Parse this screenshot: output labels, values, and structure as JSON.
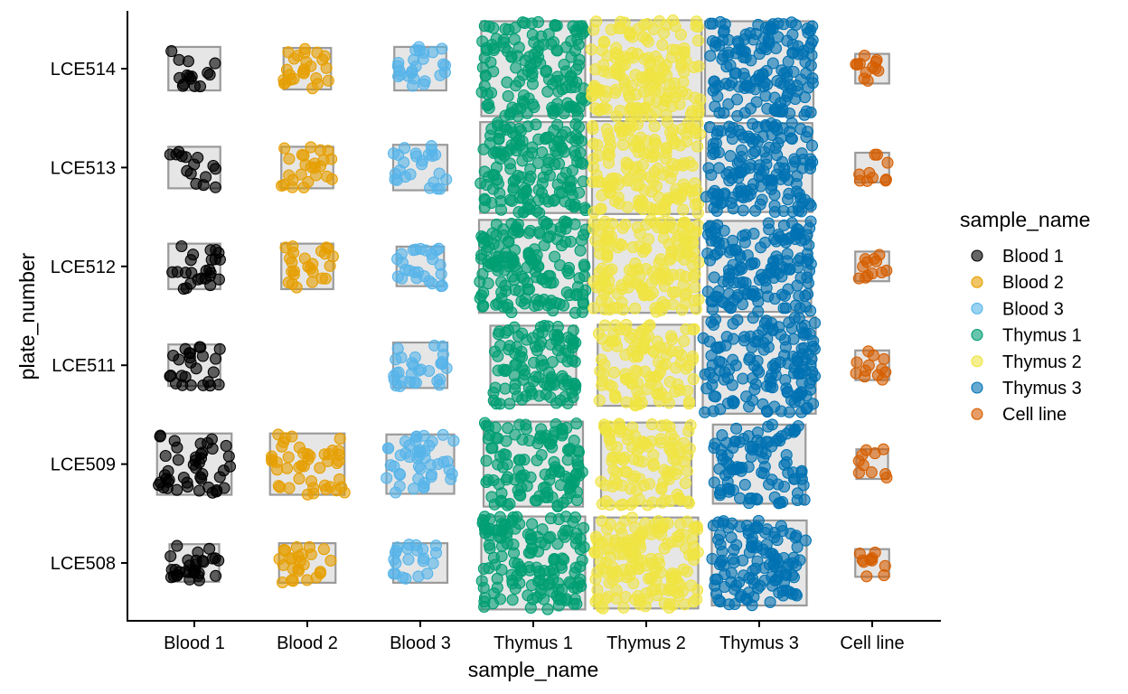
{
  "chart_data": {
    "type": "scatter",
    "xlabel": "sample_name",
    "ylabel": "plate_number",
    "categories_x": [
      "Blood 1",
      "Blood 2",
      "Blood 3",
      "Thymus 1",
      "Thymus 2",
      "Thymus 3",
      "Cell line"
    ],
    "categories_y": [
      "LCE508",
      "LCE509",
      "LCE511",
      "LCE512",
      "LCE513",
      "LCE514"
    ],
    "legend": {
      "title": "sample_name",
      "position": "right",
      "entries": [
        {
          "name": "Blood 1",
          "color": "#000000"
        },
        {
          "name": "Blood 2",
          "color": "#E69F00"
        },
        {
          "name": "Blood 3",
          "color": "#56B4E9"
        },
        {
          "name": "Thymus 1",
          "color": "#009E73"
        },
        {
          "name": "Thymus 2",
          "color": "#F0E442"
        },
        {
          "name": "Thymus 3",
          "color": "#0072B2"
        },
        {
          "name": "Cell line",
          "color": "#D55E00"
        }
      ]
    },
    "grid": false,
    "point_counts": [
      [
        30,
        45,
        25,
        25,
        15,
        15
      ],
      [
        25,
        45,
        0,
        25,
        25,
        25
      ],
      [
        22,
        45,
        30,
        25,
        25,
        25
      ],
      [
        150,
        120,
        110,
        160,
        150,
        140
      ],
      [
        160,
        110,
        110,
        160,
        150,
        160
      ],
      [
        120,
        95,
        150,
        150,
        150,
        150
      ],
      [
        10,
        10,
        12,
        12,
        10,
        12
      ]
    ],
    "box_spread": [
      [
        [
          0.22,
          0.19
        ],
        [
          0.33,
          0.31
        ],
        [
          0.23,
          0.21
        ],
        [
          0.23,
          0.23
        ],
        [
          0.23,
          0.21
        ],
        [
          0.23,
          0.22
        ]
      ],
      [
        [
          0.25,
          0.2
        ],
        [
          0.33,
          0.31
        ],
        [
          0,
          0
        ],
        [
          0.23,
          0.23
        ],
        [
          0.23,
          0.21
        ],
        [
          0.21,
          0.21
        ]
      ],
      [
        [
          0.24,
          0.2
        ],
        [
          0.3,
          0.3
        ],
        [
          0.24,
          0.23
        ],
        [
          0.21,
          0.2
        ],
        [
          0.24,
          0.23
        ],
        [
          0.23,
          0.22
        ]
      ],
      [
        [
          0.46,
          0.47
        ],
        [
          0.44,
          0.43
        ],
        [
          0.38,
          0.4
        ],
        [
          0.48,
          0.47
        ],
        [
          0.47,
          0.46
        ],
        [
          0.46,
          0.48
        ]
      ],
      [
        [
          0.46,
          0.46
        ],
        [
          0.4,
          0.42
        ],
        [
          0.43,
          0.41
        ],
        [
          0.47,
          0.47
        ],
        [
          0.48,
          0.47
        ],
        [
          0.49,
          0.49
        ]
      ],
      [
        [
          0.42,
          0.43
        ],
        [
          0.41,
          0.4
        ],
        [
          0.5,
          0.49
        ],
        [
          0.46,
          0.46
        ],
        [
          0.47,
          0.45
        ],
        [
          0.48,
          0.48
        ]
      ],
      [
        [
          0.15,
          0.14
        ],
        [
          0.14,
          0.15
        ],
        [
          0.15,
          0.15
        ],
        [
          0.15,
          0.15
        ],
        [
          0.15,
          0.15
        ],
        [
          0.15,
          0.15
        ]
      ]
    ]
  }
}
